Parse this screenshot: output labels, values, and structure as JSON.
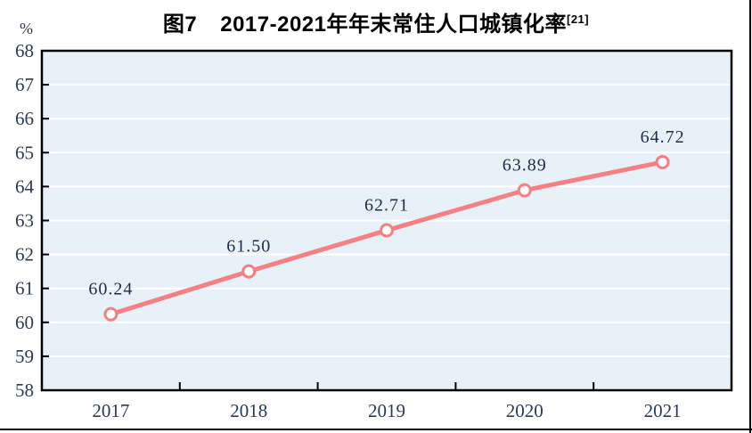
{
  "title": {
    "prefix": "图7",
    "main": "2017-2021年年末常住人口城镇化率",
    "superscript": "[21]"
  },
  "chart_data": {
    "type": "line",
    "title": "图7 2017-2021年年末常住人口城镇化率[21]",
    "unit": "%",
    "categories": [
      "2017",
      "2018",
      "2019",
      "2020",
      "2021"
    ],
    "series": [
      {
        "name": "年末常住人口城镇化率",
        "values": [
          60.24,
          61.5,
          62.71,
          63.89,
          64.72
        ]
      }
    ],
    "point_labels": [
      "60.24",
      "61.50",
      "62.71",
      "63.89",
      "64.72"
    ],
    "ylim": [
      58,
      68
    ],
    "ytick_step": 1,
    "grid": true,
    "legend": "none",
    "colors": {
      "line": "#f58084",
      "marker_fill": "#ffffff",
      "plot_bg": "#e9f1f8",
      "gridline": "#ffffff",
      "axis": "#000000",
      "tick_text": "#2a3a58",
      "label_text": "#1d2d49",
      "title_text": "#000000"
    }
  }
}
